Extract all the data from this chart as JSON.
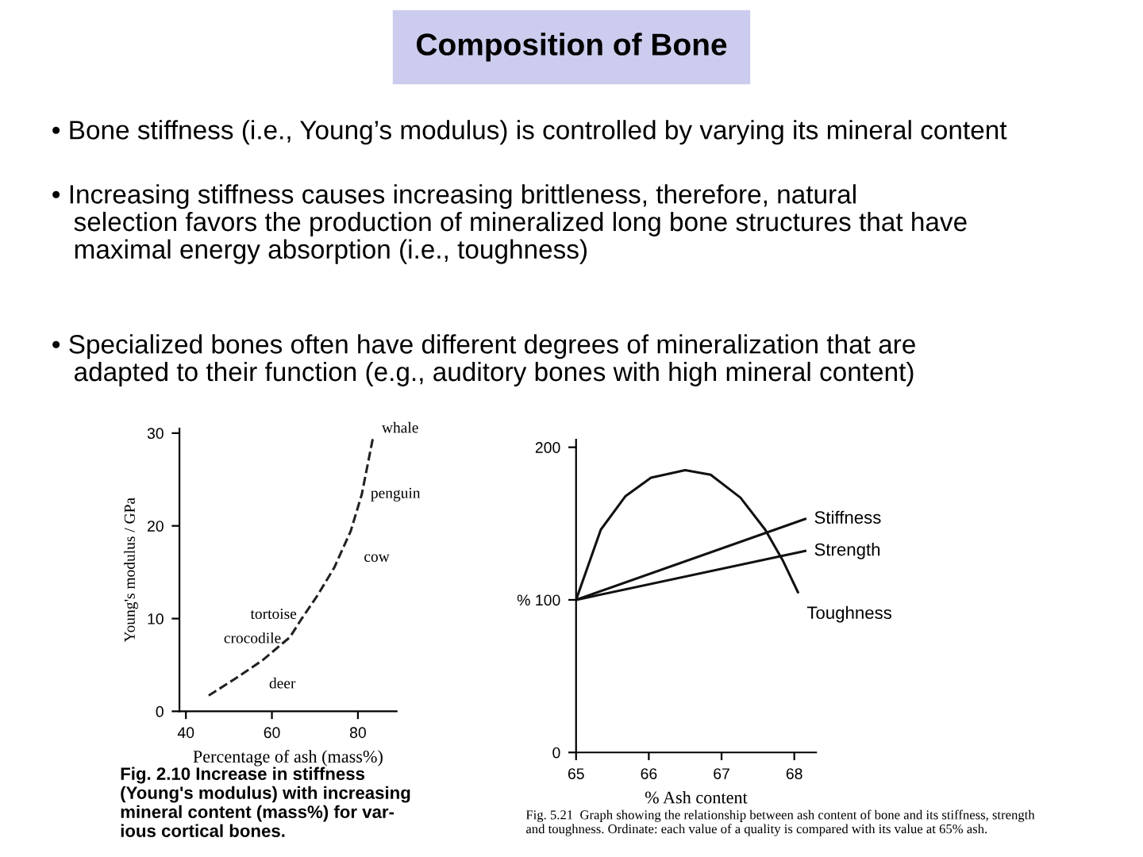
{
  "chart_data": [
    {
      "type": "other",
      "title": "Composition of Bone",
      "annotations": [
        "• Bone stiffness (i.e., Young’s modulus) is controlled by varying its mineral content",
        "• Increasing stiffness causes increasing brittleness, therefore, natural\n   selection favors the production of mineralized long bone structures that have\n   maximal energy absorption (i.e., toughness)",
        "• Specialized bones often have different degrees of mineralization that are\n   adapted to their function (e.g., auditory bones with high mineral content)"
      ]
    },
    {
      "type": "line",
      "xlabel": "Percentage of ash (mass%)",
      "ylabel": "Young's modulus / GPa",
      "x": [
        45.3,
        51.4,
        57.8,
        64.2,
        66.8,
        70.6,
        74.5,
        78.3,
        80.9,
        83.5
      ],
      "series": [
        {
          "color": "#222222",
          "values": [
            1.7,
            3.5,
            5.5,
            8.0,
            9.9,
            12.5,
            15.5,
            19.4,
            23.4,
            29.5
          ]
        }
      ],
      "line_style": "dashed",
      "xlim": [
        38.5,
        89
      ],
      "ylim": [
        0,
        30.5
      ],
      "xticks": [
        40,
        60,
        80
      ],
      "yticks": [
        0,
        10,
        20,
        30
      ],
      "grid": false,
      "annotations": [
        {
          "text": "whale",
          "x": 83.5,
          "y": 29.5
        },
        {
          "text": "penguin",
          "x": 80.9,
          "y": 23.4
        },
        {
          "text": "cow",
          "x": 78.3,
          "y": 19.4
        },
        {
          "text": "tortoise",
          "x": 66.8,
          "y": 9.9
        },
        {
          "text": "crocodile",
          "x": 64.2,
          "y": 8.0
        },
        {
          "text": "deer",
          "x": 57.8,
          "y": 5.5
        },
        "Fig. 2.10 Increase in stiffness\n(Young's modulus) with increasing\nmineral content (mass%) for var-\nious cortical bones."
      ]
    },
    {
      "type": "line",
      "xlabel": "% Ash content",
      "series": [
        {
          "name": "Toughness",
          "color": "#111111",
          "x": [
            65,
            65.34,
            65.68,
            66.03,
            66.5,
            66.85,
            67.26,
            67.6,
            67.84,
            68.05
          ],
          "values": [
            100,
            146,
            168,
            180,
            185,
            182,
            167,
            146,
            126,
            105
          ]
        },
        {
          "name": "Stiffness",
          "color": "#111111",
          "x": [
            65,
            68.15
          ],
          "values": [
            100,
            153
          ]
        },
        {
          "name": "Strength",
          "color": "#111111",
          "x": [
            65,
            68.15
          ],
          "values": [
            100,
            132
          ]
        }
      ],
      "xlim": [
        65,
        68.3
      ],
      "ylim": [
        0,
        205
      ],
      "xticks": [
        65,
        66,
        67,
        68
      ],
      "yticks": [
        0,
        {
          "value": 100,
          "label": "% 100"
        },
        200
      ],
      "grid": false,
      "legend": false,
      "annotations": [
        "Fig. 5.21  Graph showing the relationship between ash content of bone and its stiffness, strength\nand toughness. Ordinate: each value of a quality is compared with its value at 65% ash."
      ]
    }
  ]
}
